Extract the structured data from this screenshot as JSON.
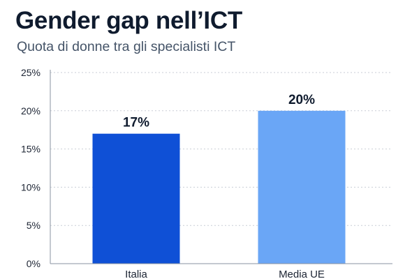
{
  "header": {
    "title": "Gender gap nell’ICT",
    "subtitle": "Quota di donne tra gli specialisti ICT"
  },
  "colors": {
    "italia_bar": "#0f50d6",
    "media_ue_bar": "#6aa6f6",
    "gridline": "#c9ced6",
    "axis": "#8a93a0"
  },
  "chart_data": {
    "type": "bar",
    "categories": [
      "Italia",
      "Media UE"
    ],
    "values": [
      17,
      20
    ],
    "data_labels": [
      "17%",
      "20%"
    ],
    "bar_colors": [
      "#0f50d6",
      "#6aa6f6"
    ],
    "ylim": [
      0,
      25
    ],
    "yticks": [
      0,
      5,
      10,
      15,
      20,
      25
    ],
    "ytick_labels": [
      "0%",
      "5%",
      "10%",
      "15%",
      "20%",
      "25%"
    ],
    "xlabel": "",
    "ylabel": "",
    "grid": "horizontal-dotted",
    "legend": "none"
  }
}
